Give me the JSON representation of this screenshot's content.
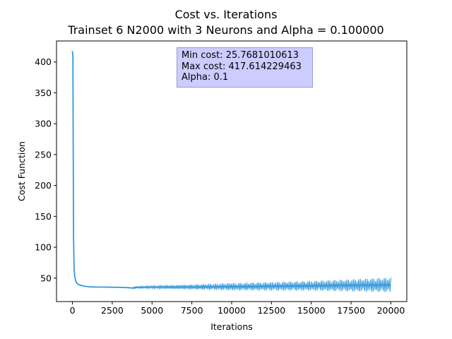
{
  "chart_data": {
    "type": "line",
    "title_line1": "Cost vs. Iterations",
    "title_line2": "Trainset 6 N2000 with 3 Neurons and Alpha = 0.100000",
    "xlabel": "Iterations",
    "ylabel": "Cost Function",
    "xlim": [
      -1000,
      21000
    ],
    "ylim": [
      12,
      434
    ],
    "xticks": [
      0,
      2500,
      5000,
      7500,
      10000,
      12500,
      15000,
      17500,
      20000
    ],
    "yticks": [
      50,
      100,
      150,
      200,
      250,
      300,
      350,
      400
    ],
    "grid": false,
    "series": [
      {
        "color": "#3498db",
        "x": [
          0,
          30,
          50,
          70,
          100,
          120,
          150,
          200,
          250,
          300,
          400,
          500,
          700,
          1000,
          1500,
          2000,
          2500,
          3000,
          3500,
          3800,
          4000,
          4500,
          5000,
          5500,
          6000,
          7000,
          8000,
          9000,
          10000,
          11000,
          12000,
          13000,
          14000,
          15000,
          16000,
          17000,
          18000,
          19000,
          20000
        ],
        "y": [
          417.6,
          410,
          250,
          120,
          72,
          60,
          52,
          46,
          43,
          41,
          39.5,
          38.5,
          37,
          36,
          35.5,
          35.4,
          35.2,
          35,
          34.5,
          34,
          35,
          35.2,
          35.3,
          35.4,
          35.5,
          35.6,
          35.7,
          35.9,
          36.1,
          36.3,
          36.6,
          36.9,
          37.2,
          37.5,
          37.8,
          38.1,
          38.4,
          38.7,
          39
        ]
      }
    ],
    "noise_bands": [
      {
        "x": [
          3800,
          6000
        ],
        "half_width": [
          1.5,
          3
        ]
      },
      {
        "x": [
          6000,
          10000
        ],
        "half_width": [
          3,
          6
        ]
      },
      {
        "x": [
          10000,
          15000
        ],
        "half_width": [
          6,
          8
        ]
      },
      {
        "x": [
          15000,
          20000
        ],
        "half_width": [
          8,
          12
        ]
      }
    ],
    "annotation": {
      "min_cost": "Min cost: 25.7681010613",
      "max_cost": "Max cost: 417.614229463",
      "alpha": "Alpha: 0.1"
    }
  }
}
